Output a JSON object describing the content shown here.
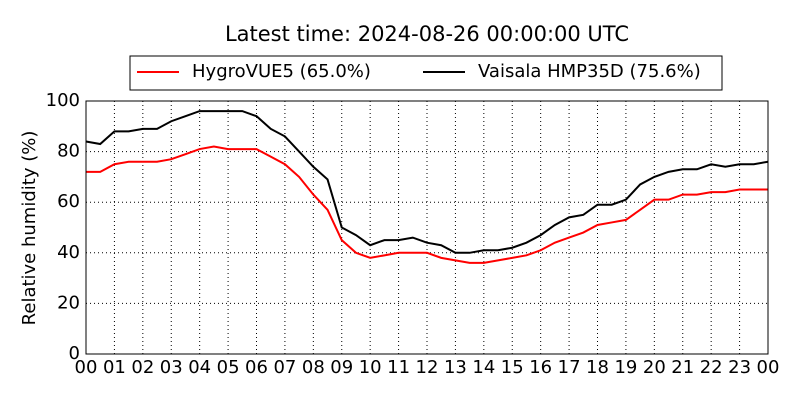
{
  "chart_data": {
    "type": "line",
    "title": "Latest time: 2024-08-26 00:00:00 UTC",
    "y_label": "Relative humidity (%)",
    "x": [
      0,
      0.5,
      1,
      1.5,
      2,
      2.5,
      3,
      3.5,
      4,
      4.5,
      5,
      5.5,
      6,
      6.5,
      7,
      7.5,
      8,
      8.5,
      9,
      9.5,
      10,
      10.5,
      11,
      11.5,
      12,
      12.5,
      13,
      13.5,
      14,
      14.5,
      15,
      15.5,
      16,
      16.5,
      17,
      17.5,
      18,
      18.5,
      19,
      19.5,
      20,
      20.5,
      21,
      21.5,
      22,
      22.5,
      23,
      23.5,
      24
    ],
    "series": [
      {
        "name": "HygroVUE5 (65.0%)",
        "color": "#ff0000",
        "values": [
          72,
          72,
          75,
          76,
          76,
          76,
          77,
          79,
          81,
          82,
          81,
          81,
          81,
          78,
          75,
          70,
          63,
          57,
          45,
          40,
          38,
          39,
          40,
          40,
          40,
          38,
          37,
          36,
          36,
          37,
          38,
          39,
          41,
          44,
          46,
          48,
          51,
          52,
          53,
          57,
          61,
          61,
          63,
          63,
          64,
          64,
          65,
          65,
          65
        ]
      },
      {
        "name": "Vaisala HMP35D (75.6%)",
        "color": "#000000",
        "values": [
          84,
          83,
          88,
          88,
          89,
          89,
          92,
          94,
          96,
          96,
          96,
          96,
          94,
          89,
          86,
          80,
          74,
          69,
          50,
          47,
          43,
          45,
          45,
          46,
          44,
          43,
          40,
          40,
          41,
          41,
          42,
          44,
          47,
          51,
          54,
          55,
          59,
          59,
          61,
          67,
          70,
          72,
          73,
          73,
          75,
          74,
          75,
          75,
          76
        ]
      }
    ],
    "xlim": [
      0,
      24
    ],
    "xticks": [
      {
        "value": 0,
        "label": "00"
      },
      {
        "value": 1,
        "label": "01"
      },
      {
        "value": 2,
        "label": "02"
      },
      {
        "value": 3,
        "label": "03"
      },
      {
        "value": 4,
        "label": "04"
      },
      {
        "value": 5,
        "label": "05"
      },
      {
        "value": 6,
        "label": "06"
      },
      {
        "value": 7,
        "label": "07"
      },
      {
        "value": 8,
        "label": "08"
      },
      {
        "value": 9,
        "label": "09"
      },
      {
        "value": 10,
        "label": "10"
      },
      {
        "value": 11,
        "label": "11"
      },
      {
        "value": 12,
        "label": "12"
      },
      {
        "value": 13,
        "label": "13"
      },
      {
        "value": 14,
        "label": "14"
      },
      {
        "value": 15,
        "label": "15"
      },
      {
        "value": 16,
        "label": "16"
      },
      {
        "value": 17,
        "label": "17"
      },
      {
        "value": 18,
        "label": "18"
      },
      {
        "value": 19,
        "label": "19"
      },
      {
        "value": 20,
        "label": "20"
      },
      {
        "value": 21,
        "label": "21"
      },
      {
        "value": 22,
        "label": "22"
      },
      {
        "value": 23,
        "label": "23"
      },
      {
        "value": 24,
        "label": "00"
      }
    ],
    "ylim": [
      0,
      100
    ],
    "yticks": [
      0,
      20,
      40,
      60,
      80,
      100
    ],
    "grid": true,
    "legend": "top"
  }
}
